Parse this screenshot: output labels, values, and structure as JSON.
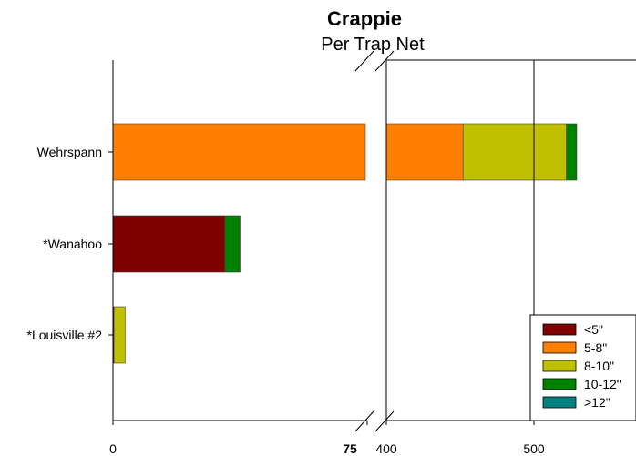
{
  "chart_data": {
    "type": "bar",
    "orientation": "horizontal",
    "stacked": true,
    "title": "Crappie",
    "subtitle": "Per Trap Net",
    "xlabel": "",
    "ylabel": "",
    "categories": [
      "Wehrspann",
      "*Wanahoo",
      "*Louisville #2"
    ],
    "axis_break": {
      "from": 75,
      "to": 400
    },
    "x_segments": [
      {
        "range": [
          0,
          75
        ]
      },
      {
        "range": [
          400,
          530
        ]
      }
    ],
    "xticks": [
      {
        "value": 0,
        "label": "0",
        "bold": false
      },
      {
        "value": 75,
        "label": "75",
        "bold": true
      },
      {
        "value": 400,
        "label": "400",
        "bold": false
      },
      {
        "value": 500,
        "label": "500",
        "bold": false
      }
    ],
    "gridlines_at": [
      500
    ],
    "series": [
      {
        "name": "<5\"",
        "color": "#800000",
        "values": [
          0,
          33,
          0.3
        ]
      },
      {
        "name": "5-8\"",
        "color": "#ff8000",
        "values": [
          452,
          0,
          0
        ]
      },
      {
        "name": "8-10\"",
        "color": "#c0c000",
        "values": [
          70,
          0,
          3.3
        ]
      },
      {
        "name": "10-12\"",
        "color": "#008000",
        "values": [
          7,
          4.5,
          0
        ]
      },
      {
        "name": ">12\"",
        "color": "#008080",
        "values": [
          0,
          0,
          0
        ]
      }
    ],
    "legend_position": "bottom-right"
  }
}
